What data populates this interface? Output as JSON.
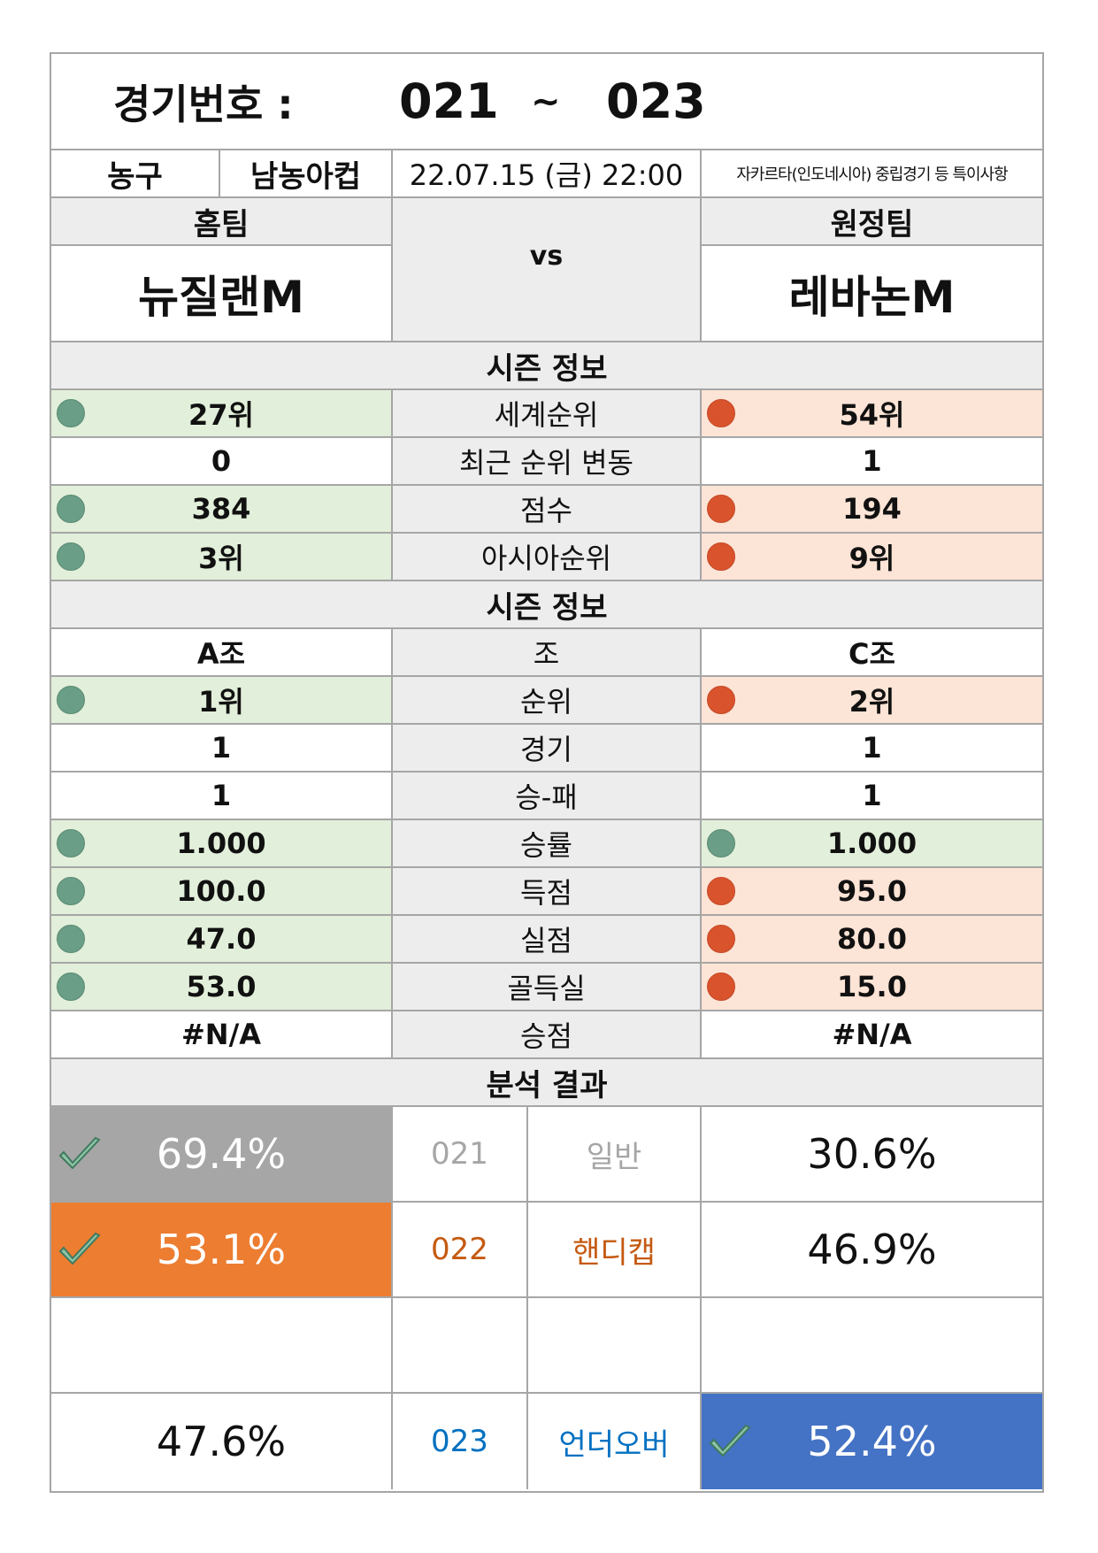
{
  "header": {
    "label": "경기번호 :",
    "from": "021",
    "tilde": "~",
    "to": "023"
  },
  "info": {
    "sport": "농구",
    "league": "남농아컵",
    "datetime": "22.07.15 (금) 22:00",
    "note": "자카르타(인도네시아) 중립경기 등 특이사항"
  },
  "teams": {
    "home_label": "홈팀",
    "away_label": "원정팀",
    "home_name": "뉴질랜M",
    "away_name": "레바논M",
    "vs": "vs"
  },
  "season1": {
    "title": "시즌 정보",
    "rows": [
      {
        "home": "27위",
        "label": "세계순위",
        "away": "54위",
        "home_mark": "green",
        "away_mark": "red"
      },
      {
        "home": "0",
        "label": "최근 순위 변동",
        "away": "1",
        "home_mark": "none",
        "away_mark": "none"
      },
      {
        "home": "384",
        "label": "점수",
        "away": "194",
        "home_mark": "green",
        "away_mark": "red"
      },
      {
        "home": "3위",
        "label": "아시아순위",
        "away": "9위",
        "home_mark": "green",
        "away_mark": "red"
      }
    ]
  },
  "season2": {
    "title": "시즌 정보",
    "rows": [
      {
        "home": "A조",
        "label": "조",
        "away": "C조",
        "home_mark": "none",
        "away_mark": "none"
      },
      {
        "home": "1위",
        "label": "순위",
        "away": "2위",
        "home_mark": "green",
        "away_mark": "red"
      },
      {
        "home": "1",
        "label": "경기",
        "away": "1",
        "home_mark": "none",
        "away_mark": "none"
      },
      {
        "home": "1",
        "label": "승-패",
        "away": "1",
        "home_mark": "none",
        "away_mark": "none"
      },
      {
        "home": "1.000",
        "label": "승률",
        "away": "1.000",
        "home_mark": "green",
        "away_mark": "green"
      },
      {
        "home": "100.0",
        "label": "득점",
        "away": "95.0",
        "home_mark": "green",
        "away_mark": "red"
      },
      {
        "home": "47.0",
        "label": "실점",
        "away": "80.0",
        "home_mark": "green",
        "away_mark": "red"
      },
      {
        "home": "53.0",
        "label": "골득실",
        "away": "15.0",
        "home_mark": "green",
        "away_mark": "red"
      },
      {
        "home": "#N/A",
        "label": "승점",
        "away": "#N/A",
        "home_mark": "none",
        "away_mark": "none"
      }
    ]
  },
  "analysis": {
    "title": "분석 결과",
    "rows": [
      {
        "home": "69.4%",
        "code": "021",
        "type": "일반",
        "away": "30.6%",
        "pick": "home",
        "home_bg": "#a6a6a6",
        "away_bg": "#ffffff",
        "text_color": "#a6a6a6"
      },
      {
        "home": "53.1%",
        "code": "022",
        "type": "핸디캡",
        "away": "46.9%",
        "pick": "home",
        "home_bg": "#ed7d31",
        "away_bg": "#ffffff",
        "text_color": "#c55a11"
      },
      {
        "home": "",
        "code": "",
        "type": "",
        "away": "",
        "pick": "none",
        "home_bg": "#ffffff",
        "away_bg": "#ffffff",
        "text_color": "#111111"
      },
      {
        "home": "47.6%",
        "code": "023",
        "type": "언더오버",
        "away": "52.4%",
        "pick": "away",
        "home_bg": "#ffffff",
        "away_bg": "#4472c4",
        "text_color": "#0070c0"
      }
    ]
  },
  "colors": {
    "green_fill": "#e2efda",
    "red_fill": "#fce4d6",
    "green_dot": "#6a9e86",
    "red_dot": "#d9532d",
    "grey_fill": "#ededed",
    "border": "#a6a6a6"
  }
}
